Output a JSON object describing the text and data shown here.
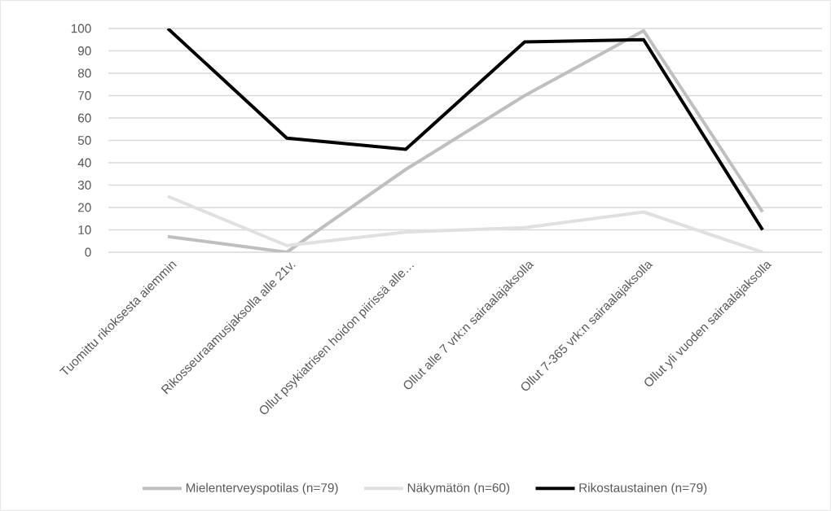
{
  "chart_data": {
    "type": "line",
    "categories": [
      "Tuomittu rikoksesta aiemmin",
      "Rikosseuraamusjaksolla alle 21v.",
      "Ollut psykiatrisen hoidon piirissä alle…",
      "Ollut alle 7 vrk:n sairaalajaksolla",
      "Ollut 7-365 vrk:n sairaalajaksolla",
      "Ollut yli vuoden sairaalajaksolla"
    ],
    "series": [
      {
        "name": "Mielenterveyspotilas (n=79)",
        "color": "#bfbfbf",
        "values": [
          7,
          0,
          37,
          70,
          99,
          18
        ]
      },
      {
        "name": "Näkymätön (n=60)",
        "color": "#e0e0e0",
        "values": [
          25,
          3,
          9,
          11,
          18,
          0
        ]
      },
      {
        "name": "Rikostaustainen (n=79)",
        "color": "#000000",
        "values": [
          100,
          51,
          46,
          94,
          95,
          10
        ]
      }
    ],
    "ylim": [
      0,
      100
    ],
    "yticks": [
      0,
      10,
      20,
      30,
      40,
      50,
      60,
      70,
      80,
      90,
      100
    ],
    "grid": "y",
    "legend": "bottom"
  }
}
